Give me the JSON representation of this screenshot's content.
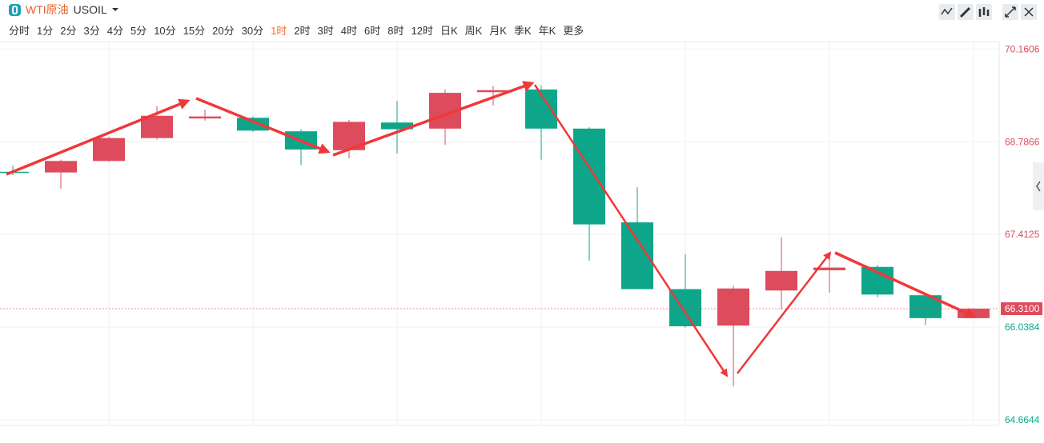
{
  "header": {
    "name": "WTI原油",
    "symbol": "USOIL"
  },
  "periods": [
    "分时",
    "1分",
    "2分",
    "3分",
    "4分",
    "5分",
    "10分",
    "15分",
    "20分",
    "30分",
    "1时",
    "2时",
    "3时",
    "4时",
    "6时",
    "8时",
    "12时",
    "日K",
    "周K",
    "月K",
    "季K",
    "年K",
    "更多"
  ],
  "active_period_index": 10,
  "chart_data": {
    "type": "candlestick",
    "open": [
      68.34,
      68.33,
      68.5,
      68.84,
      69.13,
      69.14,
      68.94,
      68.66,
      69.07,
      68.98,
      69.52,
      69.56,
      68.98,
      67.59,
      66.6,
      66.06,
      66.58,
      66.88,
      66.93,
      66.51,
      66.17
    ],
    "high": [
      68.43,
      68.52,
      68.86,
      69.31,
      69.26,
      69.16,
      68.97,
      69.11,
      69.39,
      69.56,
      69.61,
      69.62,
      69.0,
      68.11,
      67.12,
      66.65,
      67.37,
      67.12,
      66.96,
      66.54,
      66.32
    ],
    "low": [
      68.29,
      68.09,
      68.49,
      68.82,
      69.1,
      68.93,
      68.44,
      68.54,
      68.61,
      68.74,
      69.32,
      68.52,
      67.02,
      66.6,
      66.03,
      65.16,
      66.3,
      66.55,
      66.48,
      66.07,
      66.17
    ],
    "close": [
      68.33,
      68.5,
      68.84,
      69.17,
      69.16,
      68.95,
      68.67,
      69.08,
      68.97,
      69.51,
      69.55,
      68.98,
      67.56,
      66.6,
      66.05,
      66.61,
      66.87,
      66.92,
      66.52,
      66.17,
      66.31
    ],
    "up_color": "#dd4b5c",
    "down_color": "#0ea68a",
    "ylim": [
      64.58,
      70.27
    ],
    "yticks": [
      70.1606,
      68.7866,
      67.4125,
      66.0384,
      64.6644
    ],
    "grid": true,
    "last_price": {
      "value": 66.31,
      "label": "66.3100"
    }
  }
}
